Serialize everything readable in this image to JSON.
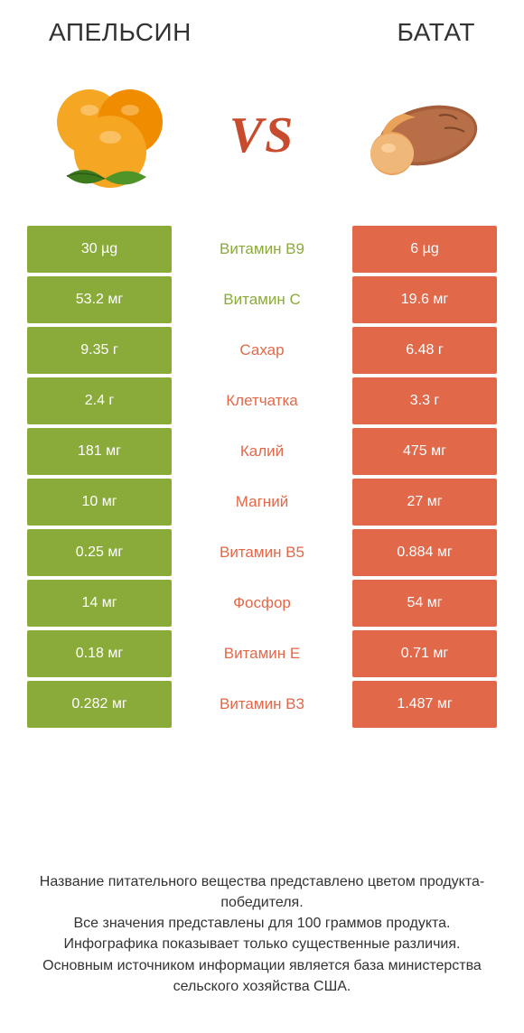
{
  "colors": {
    "left": "#8aab3a",
    "right": "#e2684a",
    "white": "#ffffff",
    "text": "#333333",
    "vs": "#c94b2e"
  },
  "header": {
    "left_title": "АПЕЛЬСИН",
    "right_title": "БАТАТ",
    "vs_label": "VS"
  },
  "rows": [
    {
      "label": "Витамин B9",
      "left": "30 µg",
      "right": "6 µg",
      "winner": "left"
    },
    {
      "label": "Витамин C",
      "left": "53.2 мг",
      "right": "19.6 мг",
      "winner": "left"
    },
    {
      "label": "Сахар",
      "left": "9.35 г",
      "right": "6.48 г",
      "winner": "right"
    },
    {
      "label": "Клетчатка",
      "left": "2.4 г",
      "right": "3.3 г",
      "winner": "right"
    },
    {
      "label": "Калий",
      "left": "181 мг",
      "right": "475 мг",
      "winner": "right"
    },
    {
      "label": "Магний",
      "left": "10 мг",
      "right": "27 мг",
      "winner": "right"
    },
    {
      "label": "Витамин B5",
      "left": "0.25 мг",
      "right": "0.884 мг",
      "winner": "right"
    },
    {
      "label": "Фосфор",
      "left": "14 мг",
      "right": "54 мг",
      "winner": "right"
    },
    {
      "label": "Витамин E",
      "left": "0.18 мг",
      "right": "0.71 мг",
      "winner": "right"
    },
    {
      "label": "Витамин B3",
      "left": "0.282 мг",
      "right": "1.487 мг",
      "winner": "right"
    }
  ],
  "footer": {
    "line1": "Название питательного вещества представлено цветом продукта-победителя.",
    "line2": "Все значения представлены для 100 граммов продукта.",
    "line3": "Инфографика показывает только существенные различия.",
    "line4": "Основным источником информации является база министерства сельского хозяйства США."
  }
}
